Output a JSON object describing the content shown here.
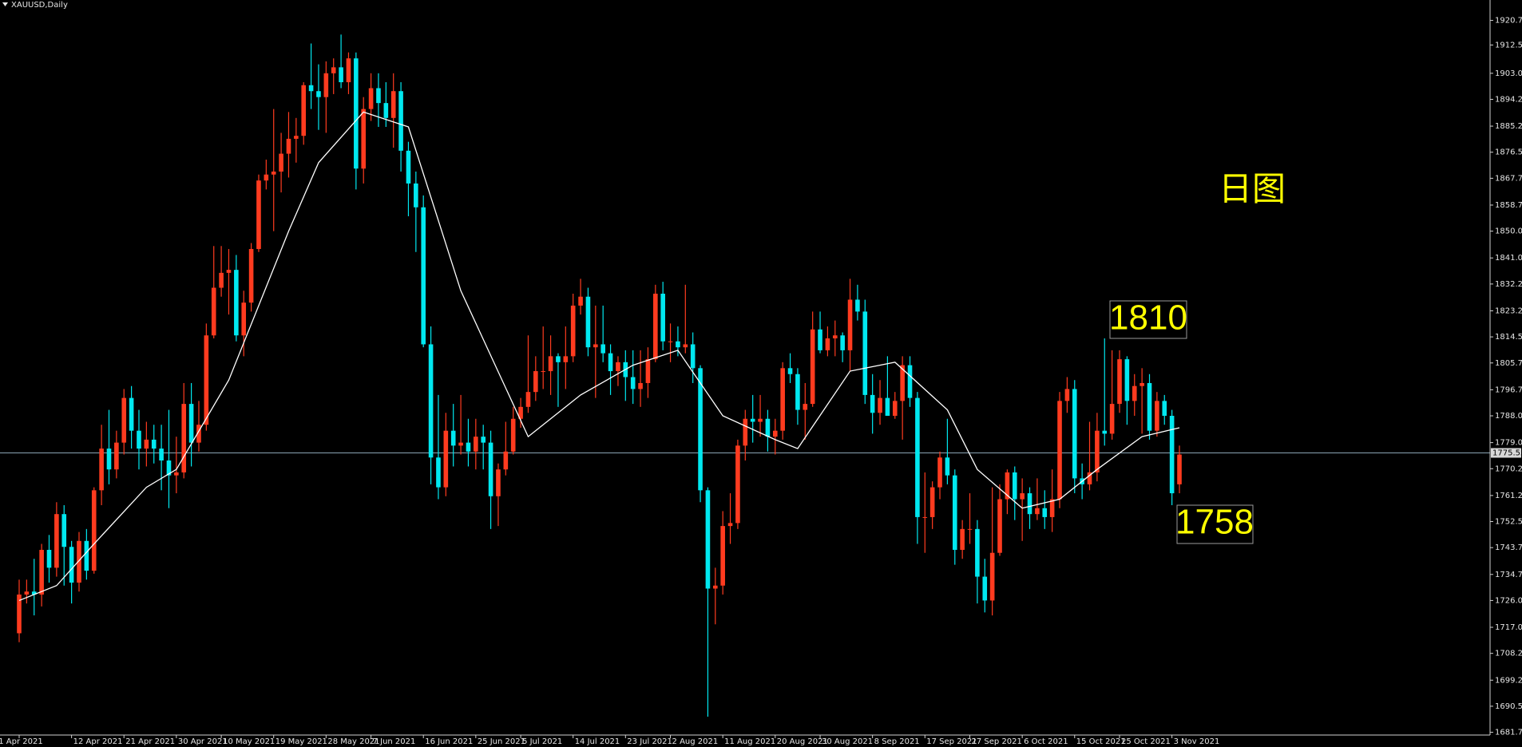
{
  "chart_data": {
    "type": "candlestick",
    "title": "XAUUSD,Daily",
    "background": "#000000",
    "up_color": "#ff3b1f",
    "down_color": "#00e8f0",
    "ma_color": "#ffffff",
    "price_line_color": "#8aa4b4",
    "annotations": [
      "日图",
      "1810",
      "1758"
    ],
    "current_price": {
      "value": 1775.55,
      "label": "1775.55"
    },
    "ylim": [
      1681.1,
      1927.6
    ],
    "yticks": [
      {
        "value": 1920.75,
        "label": "1920.75"
      },
      {
        "value": 1912.5,
        "label": "1912.50"
      },
      {
        "value": 1903,
        "label": "1903.00"
      },
      {
        "value": 1894.25,
        "label": "1894.25"
      },
      {
        "value": 1885.25,
        "label": "1885.25"
      },
      {
        "value": 1876.5,
        "label": "1876.50"
      },
      {
        "value": 1867.75,
        "label": "1867.75"
      },
      {
        "value": 1858.75,
        "label": "1858.75"
      },
      {
        "value": 1850,
        "label": "1850.00"
      },
      {
        "value": 1841,
        "label": "1841.00"
      },
      {
        "value": 1832.25,
        "label": "1832.25"
      },
      {
        "value": 1823.25,
        "label": "1823.25"
      },
      {
        "value": 1814.5,
        "label": "1814.50"
      },
      {
        "value": 1805.75,
        "label": "1805.75"
      },
      {
        "value": 1796.75,
        "label": "1796.75"
      },
      {
        "value": 1788,
        "label": "1788.00"
      },
      {
        "value": 1779,
        "label": "1779.00"
      },
      {
        "value": 1770.25,
        "label": "1770.25"
      },
      {
        "value": 1761.25,
        "label": "1761.25"
      },
      {
        "value": 1752.5,
        "label": "1752.50"
      },
      {
        "value": 1743.75,
        "label": "1743.75"
      },
      {
        "value": 1734.75,
        "label": "1734.75"
      },
      {
        "value": 1726,
        "label": "1726.00"
      },
      {
        "value": 1717,
        "label": "1717.00"
      },
      {
        "value": 1708.25,
        "label": "1708.25"
      },
      {
        "value": 1699.25,
        "label": "1699.25"
      },
      {
        "value": 1690.5,
        "label": "1690.50"
      },
      {
        "value": 1681.75,
        "label": "1681.75"
      }
    ],
    "categories": [
      "1 Apr 2021",
      null,
      null,
      null,
      null,
      null,
      null,
      "12 Apr 2021",
      null,
      null,
      null,
      null,
      null,
      null,
      "21 Apr 2021",
      null,
      null,
      null,
      null,
      null,
      null,
      "30 Apr 2021",
      null,
      null,
      null,
      null,
      null,
      "10 May 2021",
      null,
      null,
      null,
      null,
      null,
      null,
      "19 May 2021",
      null,
      null,
      null,
      null,
      null,
      null,
      "28 May 2021",
      null,
      null,
      null,
      null,
      null,
      "7 Jun 2021",
      null,
      null,
      null,
      null,
      null,
      null,
      "16 Jun 2021",
      null,
      null,
      null,
      null,
      null,
      null,
      "25 Jun 2021",
      null,
      null,
      null,
      null,
      null,
      "5 Jul 2021",
      null,
      null,
      null,
      null,
      null,
      null,
      "14 Jul 2021",
      null,
      null,
      null,
      null,
      null,
      null,
      "23 Jul 2021",
      null,
      null,
      null,
      null,
      null,
      "2 Aug 2021",
      null,
      null,
      null,
      null,
      null,
      null,
      "11 Aug 2021",
      null,
      null,
      null,
      null,
      null,
      null,
      "20 Aug 2021",
      null,
      null,
      null,
      null,
      null,
      "30 Aug 2021",
      null,
      null,
      null,
      null,
      null,
      null,
      "8 Sep 2021",
      null,
      null,
      null,
      null,
      null,
      null,
      "17 Sep 2021",
      null,
      null,
      null,
      null,
      null,
      "27 Sep 2021",
      null,
      null,
      null,
      null,
      null,
      null,
      "6 Oct 2021",
      null,
      null,
      null,
      null,
      null,
      null,
      "15 Oct 2021",
      null,
      null,
      null,
      null,
      null,
      "25 Oct 2021",
      null,
      null,
      null,
      null,
      null,
      null,
      "3 Nov 2021",
      null
    ],
    "candles": [
      [
        1715,
        1733,
        1712,
        1728
      ],
      [
        1728,
        1733,
        1725,
        1729
      ],
      [
        1729,
        1740,
        1721,
        1728
      ],
      [
        1728,
        1745,
        1724,
        1743
      ],
      [
        1743,
        1748,
        1732,
        1737
      ],
      [
        1737,
        1759,
        1734,
        1755
      ],
      [
        1755,
        1758,
        1731,
        1744
      ],
      [
        1744,
        1746,
        1725,
        1732
      ],
      [
        1732,
        1749,
        1729,
        1746
      ],
      [
        1746,
        1750,
        1733,
        1736
      ],
      [
        1736,
        1764,
        1735,
        1763
      ],
      [
        1763,
        1785,
        1758,
        1777
      ],
      [
        1777,
        1790,
        1765,
        1770
      ],
      [
        1770,
        1783,
        1767,
        1779
      ],
      [
        1779,
        1797,
        1775,
        1794
      ],
      [
        1794,
        1798,
        1777,
        1783
      ],
      [
        1783,
        1790,
        1770,
        1777
      ],
      [
        1777,
        1786,
        1771,
        1780
      ],
      [
        1780,
        1785,
        1772,
        1777
      ],
      [
        1777,
        1785,
        1763,
        1773
      ],
      [
        1773,
        1790,
        1757,
        1768
      ],
      [
        1768,
        1781,
        1762,
        1769
      ],
      [
        1769,
        1799,
        1767,
        1792
      ],
      [
        1792,
        1799,
        1771,
        1779
      ],
      [
        1779,
        1793,
        1776,
        1785
      ],
      [
        1785,
        1819,
        1783,
        1815
      ],
      [
        1815,
        1845,
        1814,
        1831
      ],
      [
        1831,
        1845,
        1828,
        1836
      ],
      [
        1836,
        1844,
        1822,
        1837
      ],
      [
        1837,
        1842,
        1813,
        1815
      ],
      [
        1815,
        1830,
        1808,
        1826
      ],
      [
        1826,
        1846,
        1823,
        1844
      ],
      [
        1844,
        1869,
        1843,
        1867
      ],
      [
        1867,
        1874,
        1864,
        1869
      ],
      [
        1869,
        1891,
        1850,
        1870
      ],
      [
        1870,
        1883,
        1863,
        1876
      ],
      [
        1876,
        1890,
        1868,
        1881
      ],
      [
        1881,
        1888,
        1873,
        1882
      ],
      [
        1882,
        1900,
        1879,
        1899
      ],
      [
        1899,
        1913,
        1891,
        1897
      ],
      [
        1897,
        1906,
        1884,
        1895
      ],
      [
        1895,
        1907,
        1883,
        1903
      ],
      [
        1903,
        1908,
        1896,
        1905
      ],
      [
        1905,
        1916,
        1898,
        1900
      ],
      [
        1900,
        1910,
        1896,
        1908
      ],
      [
        1908,
        1910,
        1864,
        1871
      ],
      [
        1871,
        1895,
        1866,
        1891
      ],
      [
        1891,
        1903,
        1887,
        1898
      ],
      [
        1898,
        1903,
        1885,
        1893
      ],
      [
        1893,
        1900,
        1885,
        1888
      ],
      [
        1888,
        1903,
        1878,
        1897
      ],
      [
        1897,
        1900,
        1870,
        1877
      ],
      [
        1877,
        1880,
        1855,
        1866
      ],
      [
        1866,
        1870,
        1843,
        1858
      ],
      [
        1858,
        1862,
        1811,
        1812
      ],
      [
        1812,
        1818,
        1765,
        1774
      ],
      [
        1774,
        1795,
        1760,
        1764
      ],
      [
        1764,
        1789,
        1761,
        1783
      ],
      [
        1783,
        1792,
        1771,
        1778
      ],
      [
        1778,
        1795,
        1775,
        1779
      ],
      [
        1779,
        1787,
        1771,
        1776
      ],
      [
        1776,
        1787,
        1770,
        1781
      ],
      [
        1781,
        1785,
        1770,
        1779
      ],
      [
        1779,
        1783,
        1750,
        1761
      ],
      [
        1761,
        1772,
        1751,
        1770
      ],
      [
        1770,
        1786,
        1768,
        1776
      ],
      [
        1776,
        1791,
        1775,
        1787
      ],
      [
        1787,
        1794,
        1784,
        1791
      ],
      [
        1791,
        1815,
        1789,
        1796
      ],
      [
        1796,
        1808,
        1793,
        1803
      ],
      [
        1803,
        1818,
        1797,
        1803
      ],
      [
        1803,
        1815,
        1795,
        1808
      ],
      [
        1808,
        1809,
        1791,
        1806
      ],
      [
        1806,
        1818,
        1797,
        1808
      ],
      [
        1808,
        1829,
        1806,
        1825
      ],
      [
        1825,
        1834,
        1822,
        1828
      ],
      [
        1828,
        1831,
        1808,
        1811
      ],
      [
        1811,
        1825,
        1794,
        1812
      ],
      [
        1812,
        1825,
        1806,
        1809
      ],
      [
        1809,
        1812,
        1795,
        1803
      ],
      [
        1803,
        1808,
        1798,
        1806
      ],
      [
        1806,
        1810,
        1793,
        1801
      ],
      [
        1801,
        1810,
        1792,
        1797
      ],
      [
        1797,
        1810,
        1791,
        1799
      ],
      [
        1799,
        1811,
        1794,
        1807
      ],
      [
        1807,
        1832,
        1806,
        1829
      ],
      [
        1829,
        1833,
        1810,
        1813
      ],
      [
        1813,
        1819,
        1806,
        1813
      ],
      [
        1813,
        1818,
        1808,
        1811
      ],
      [
        1811,
        1832,
        1809,
        1812
      ],
      [
        1812,
        1816,
        1799,
        1804
      ],
      [
        1804,
        1805,
        1759,
        1763
      ],
      [
        1763,
        1764,
        1687,
        1730
      ],
      [
        1730,
        1737,
        1718,
        1731
      ],
      [
        1731,
        1756,
        1728,
        1751
      ],
      [
        1751,
        1762,
        1745,
        1752
      ],
      [
        1752,
        1780,
        1750,
        1778
      ],
      [
        1778,
        1790,
        1773,
        1787
      ],
      [
        1787,
        1795,
        1779,
        1786
      ],
      [
        1786,
        1795,
        1781,
        1787
      ],
      [
        1787,
        1790,
        1776,
        1781
      ],
      [
        1781,
        1787,
        1775,
        1783
      ],
      [
        1783,
        1806,
        1780,
        1804
      ],
      [
        1804,
        1809,
        1799,
        1802
      ],
      [
        1802,
        1804,
        1785,
        1790
      ],
      [
        1790,
        1799,
        1780,
        1792
      ],
      [
        1792,
        1823,
        1791,
        1817
      ],
      [
        1817,
        1823,
        1809,
        1810
      ],
      [
        1810,
        1818,
        1808,
        1814
      ],
      [
        1814,
        1820,
        1808,
        1815
      ],
      [
        1815,
        1816,
        1806,
        1810
      ],
      [
        1810,
        1834,
        1803,
        1827
      ],
      [
        1827,
        1832,
        1820,
        1823
      ],
      [
        1823,
        1827,
        1792,
        1795
      ],
      [
        1795,
        1802,
        1782,
        1789
      ],
      [
        1789,
        1800,
        1785,
        1794
      ],
      [
        1794,
        1808,
        1788,
        1788
      ],
      [
        1788,
        1796,
        1787,
        1793
      ],
      [
        1793,
        1808,
        1780,
        1805
      ],
      [
        1805,
        1808,
        1791,
        1794
      ],
      [
        1794,
        1796,
        1745,
        1754
      ],
      [
        1754,
        1769,
        1742,
        1754
      ],
      [
        1754,
        1766,
        1750,
        1764
      ],
      [
        1764,
        1776,
        1760,
        1774
      ],
      [
        1774,
        1787,
        1765,
        1768
      ],
      [
        1768,
        1770,
        1738,
        1743
      ],
      [
        1743,
        1753,
        1740,
        1750
      ],
      [
        1750,
        1762,
        1745,
        1750
      ],
      [
        1750,
        1753,
        1725,
        1734
      ],
      [
        1734,
        1740,
        1722,
        1726
      ],
      [
        1726,
        1764,
        1721,
        1742
      ],
      [
        1742,
        1765,
        1741,
        1760
      ],
      [
        1760,
        1770,
        1755,
        1769
      ],
      [
        1769,
        1771,
        1753,
        1760
      ],
      [
        1760,
        1767,
        1746,
        1762
      ],
      [
        1762,
        1764,
        1750,
        1755
      ],
      [
        1755,
        1767,
        1753,
        1757
      ],
      [
        1757,
        1763,
        1750,
        1754
      ],
      [
        1754,
        1770,
        1749,
        1760
      ],
      [
        1760,
        1796,
        1757,
        1793
      ],
      [
        1793,
        1801,
        1789,
        1797
      ],
      [
        1797,
        1800,
        1762,
        1767
      ],
      [
        1767,
        1772,
        1760,
        1765
      ],
      [
        1765,
        1786,
        1763,
        1769
      ],
      [
        1769,
        1789,
        1766,
        1783
      ],
      [
        1783,
        1814,
        1778,
        1782
      ],
      [
        1782,
        1810,
        1780,
        1792
      ],
      [
        1792,
        1810,
        1789,
        1807
      ],
      [
        1807,
        1808,
        1785,
        1793
      ],
      [
        1793,
        1802,
        1788,
        1798
      ],
      [
        1798,
        1804,
        1782,
        1799
      ],
      [
        1799,
        1802,
        1780,
        1783
      ],
      [
        1783,
        1796,
        1781,
        1793
      ],
      [
        1793,
        1795,
        1785,
        1788
      ],
      [
        1788,
        1790,
        1758,
        1762
      ],
      [
        1765,
        1778,
        1762,
        1775
      ]
    ],
    "ma": {
      "x": [
        0,
        5,
        10,
        17,
        21,
        28,
        36,
        40,
        46,
        52,
        59,
        68,
        75,
        82,
        88,
        94,
        101,
        104,
        111,
        117,
        124,
        128,
        134,
        139,
        144,
        150,
        155
      ],
      "values": [
        1726,
        1731,
        1745,
        1764,
        1770,
        1800,
        1850,
        1873,
        1890,
        1885,
        1830,
        1781,
        1795,
        1805,
        1810,
        1788,
        1780,
        1777,
        1803,
        1806,
        1790,
        1770,
        1757,
        1760,
        1770,
        1781,
        1784
      ]
    }
  }
}
